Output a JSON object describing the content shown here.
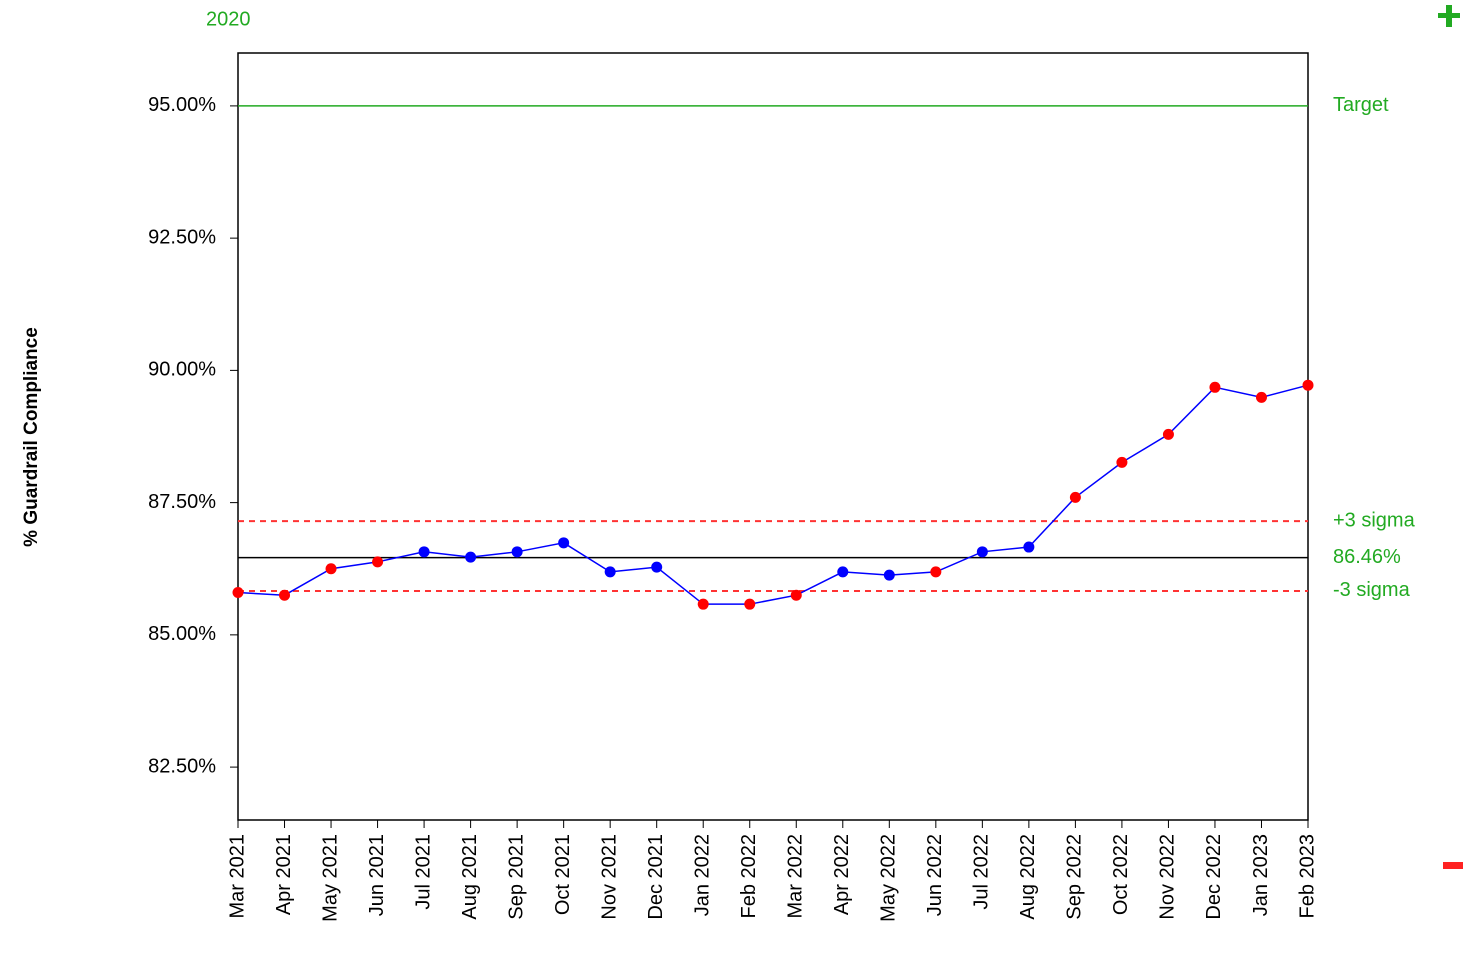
{
  "chart_data": {
    "type": "control",
    "subtitle": "2020",
    "y_label": "% Guardrail Compliance",
    "categories": [
      "Mar 2021",
      "Apr 2021",
      "May 2021",
      "Jun 2021",
      "Jul 2021",
      "Aug 2021",
      "Sep 2021",
      "Oct 2021",
      "Nov 2021",
      "Dec 2021",
      "Jan 2022",
      "Feb 2022",
      "Mar 2022",
      "Apr 2022",
      "May 2022",
      "Jun 2022",
      "Jul 2022",
      "Aug 2022",
      "Sep 2022",
      "Oct 2022",
      "Nov 2022",
      "Dec 2022",
      "Jan 2023",
      "Feb 2023"
    ],
    "series": [
      {
        "color": "#0000ff",
        "values": [
          85.8,
          85.75,
          86.25,
          86.38,
          86.57,
          86.47,
          86.57,
          86.74,
          86.19,
          86.28,
          85.58,
          85.58,
          85.75,
          86.19,
          86.13,
          86.19,
          86.57,
          86.66,
          87.6,
          88.26,
          88.79,
          89.68,
          89.49,
          89.72
        ],
        "point_colors": [
          "#ff0000",
          "#ff0000",
          "#ff0000",
          "#ff0000",
          "#0000ff",
          "#0000ff",
          "#0000ff",
          "#0000ff",
          "#0000ff",
          "#0000ff",
          "#ff0000",
          "#ff0000",
          "#ff0000",
          "#0000ff",
          "#0000ff",
          "#ff0000",
          "#0000ff",
          "#0000ff",
          "#ff0000",
          "#ff0000",
          "#ff0000",
          "#ff0000",
          "#ff0000",
          "#ff0000"
        ]
      }
    ],
    "target": {
      "value": 95,
      "label": "Target",
      "color": "#22aa22"
    },
    "mean": {
      "value": 86.46,
      "label": "86.46%",
      "color": "#000000"
    },
    "upper_limit": {
      "value": 87.15,
      "label": "+3 sigma",
      "color": "#ff3333"
    },
    "lower_limit": {
      "value": 85.83,
      "label": "-3 sigma",
      "color": "#ff3333"
    },
    "ylim": [
      81.5,
      96
    ],
    "yticks": [
      {
        "value": 82.5,
        "label": "82.50%"
      },
      {
        "value": 85,
        "label": "85.00%"
      },
      {
        "value": 87.5,
        "label": "87.50%"
      },
      {
        "value": 90,
        "label": "90.00%"
      },
      {
        "value": 92.5,
        "label": "92.50%"
      },
      {
        "value": 95,
        "label": "95.00%"
      }
    ]
  }
}
